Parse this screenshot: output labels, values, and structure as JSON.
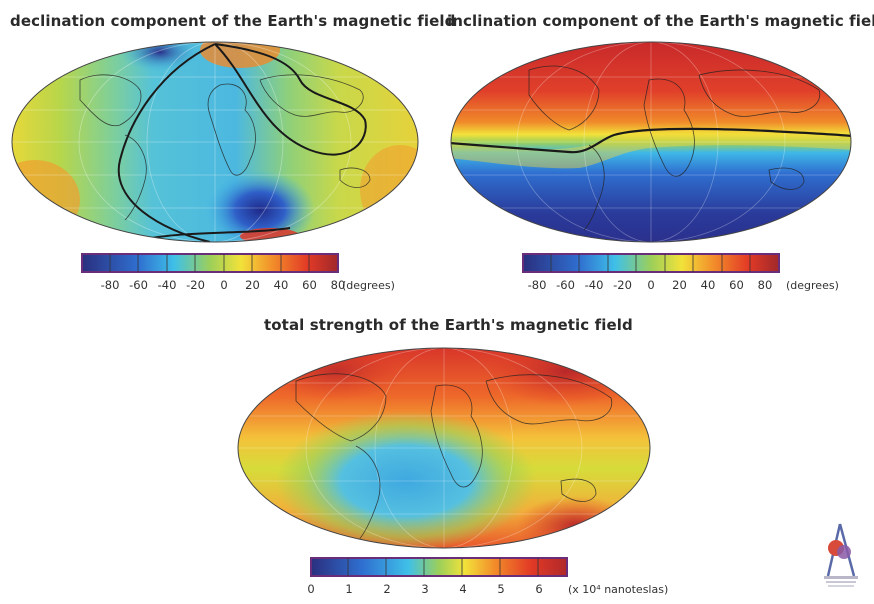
{
  "panels": [
    {
      "id": "declination",
      "title": "declination component of the Earth's magnetic field",
      "ticks": [
        "-80",
        "-60",
        "-40",
        "-20",
        "0",
        "20",
        "40",
        "60",
        "80"
      ],
      "unit": "(degrees)"
    },
    {
      "id": "inclination",
      "title": "inclination component of the Earth's magnetic field",
      "ticks": [
        "-80",
        "-60",
        "-40",
        "-20",
        "0",
        "20",
        "40",
        "60",
        "80"
      ],
      "unit": "(degrees)"
    },
    {
      "id": "total",
      "title": "total strength of the Earth's magnetic field",
      "ticks": [
        "0",
        "1",
        "2",
        "3",
        "4",
        "5",
        "6"
      ],
      "unit": "(x 10⁴ nanoteslas)"
    }
  ],
  "colors": {
    "dark_blue": "#2b2f8c",
    "blue": "#2f6fd0",
    "cyan": "#3fb8e8",
    "green": "#9ccf5a",
    "yellow": "#f2e23a",
    "orange": "#f28a2a",
    "red": "#e23a26",
    "dark_red": "#a8282a",
    "frame": "#6a2d7a"
  },
  "logo": {
    "icon": "ipgp-logo-icon"
  }
}
